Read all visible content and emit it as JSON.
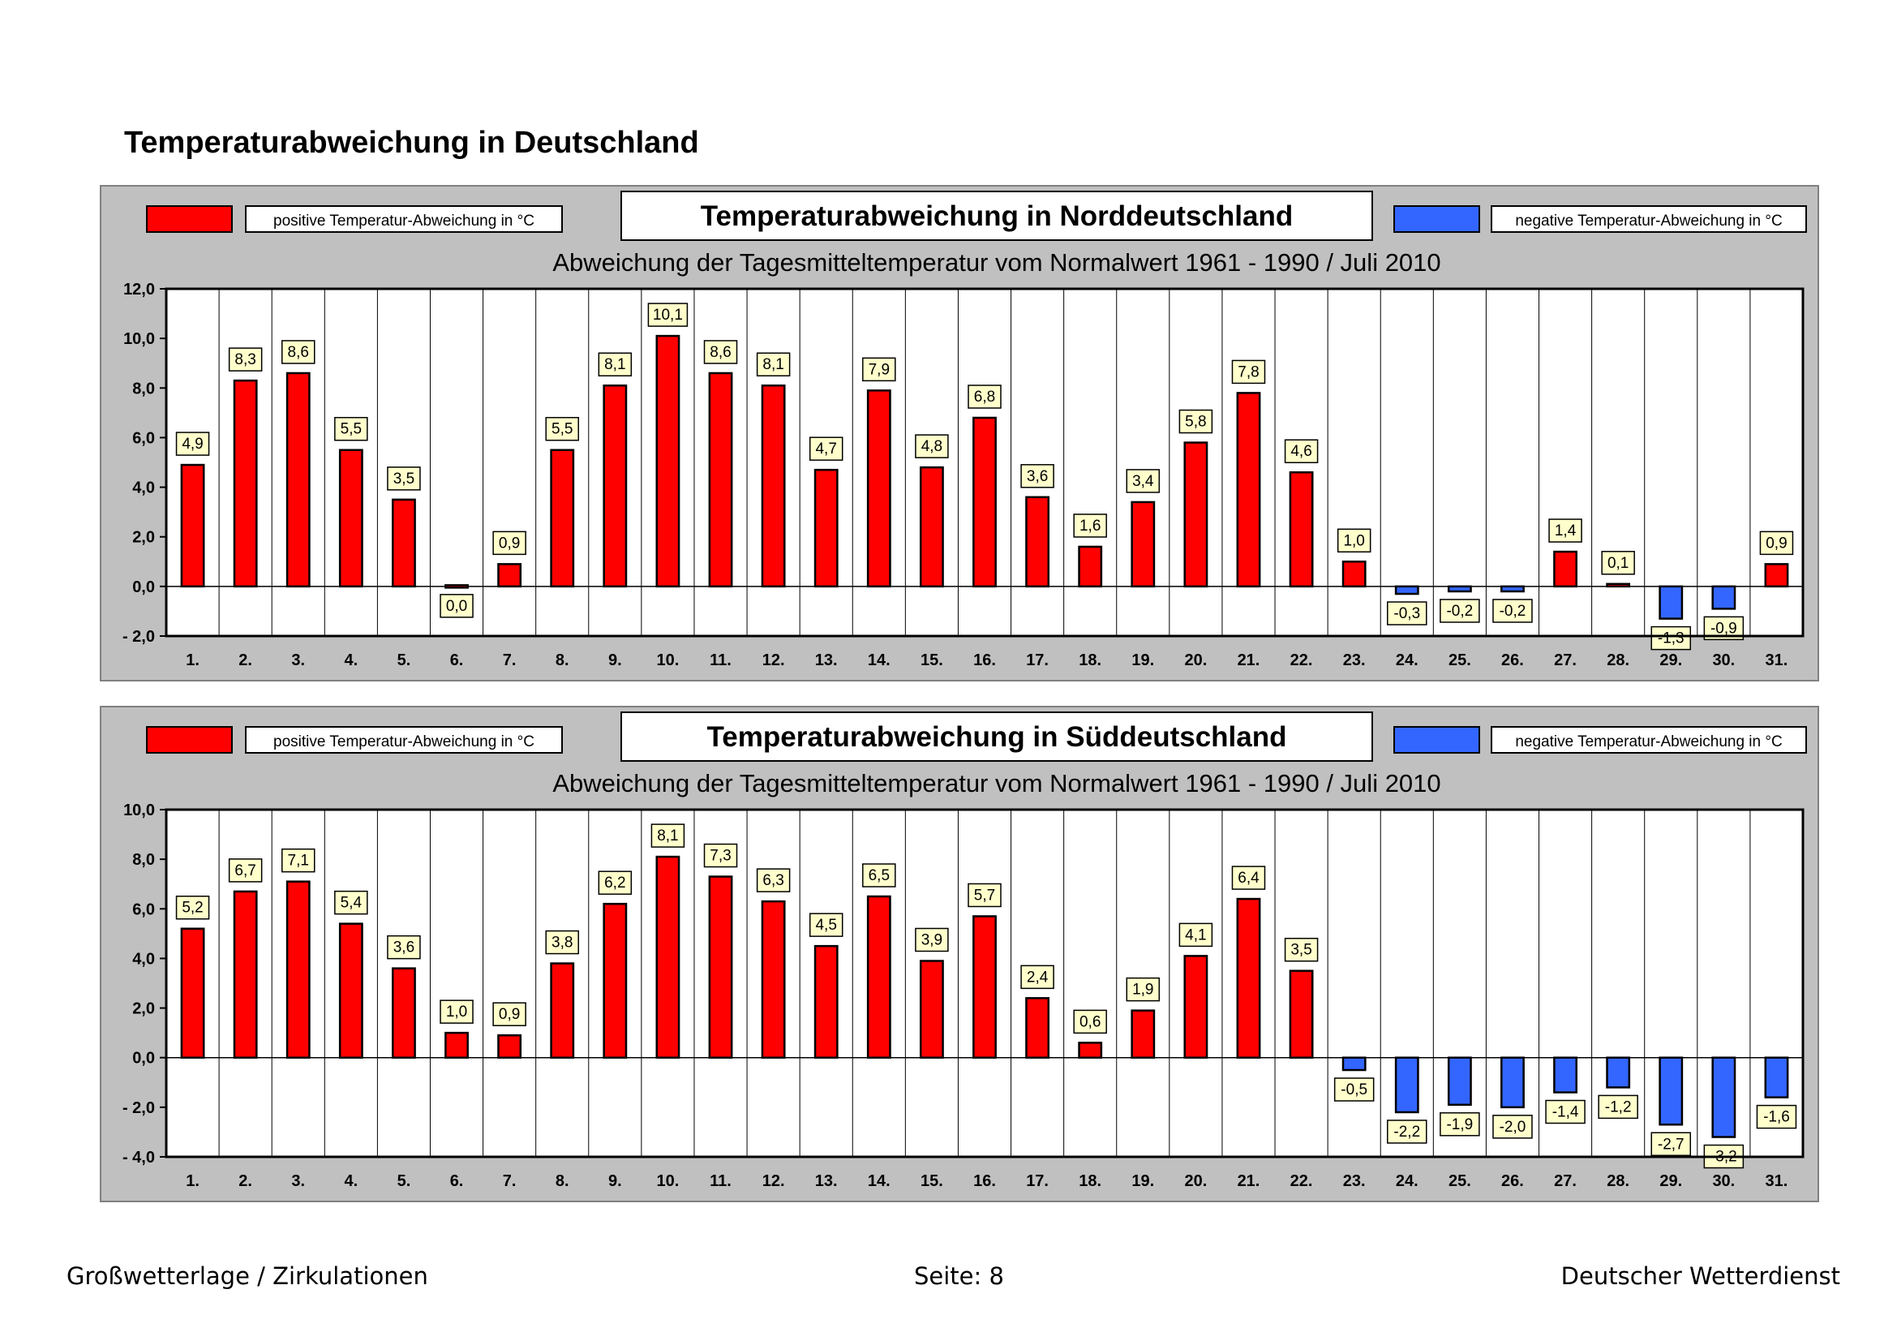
{
  "page": {
    "title": "Temperaturabweichung in Deutschland"
  },
  "footer": {
    "left": "Großwetterlage / Zirkulationen",
    "center": "Seite: 8",
    "right": "Deutscher Wetterdienst"
  },
  "colors": {
    "positive": "#ff0000",
    "negative": "#3366ff",
    "panel": "#c0c0c0",
    "label_box": "#ffffcc"
  },
  "chart_data": [
    {
      "type": "bar",
      "title": "Temperaturabweichung in Norddeutschland",
      "subtitle": "Abweichung der Tagesmitteltemperatur vom Normalwert 1961 - 1990  /  Juli 2010",
      "legend_positive": "positive Temperatur-Abweichung in °C",
      "legend_negative": "negative Temperatur-Abweichung in °C",
      "xlabel": "",
      "ylabel": "",
      "ylim": [
        -2,
        12
      ],
      "yticks": [
        -2,
        0,
        2,
        4,
        6,
        8,
        10,
        12
      ],
      "ytick_labels": [
        "- 2,0",
        "0,0",
        "2,0",
        "4,0",
        "6,0",
        "8,0",
        "10,0",
        "12,0"
      ],
      "categories": [
        "1.",
        "2.",
        "3.",
        "4.",
        "5.",
        "6.",
        "7.",
        "8.",
        "9.",
        "10.",
        "11.",
        "12.",
        "13.",
        "14.",
        "15.",
        "16.",
        "17.",
        "18.",
        "19.",
        "20.",
        "21.",
        "22.",
        "23.",
        "24.",
        "25.",
        "26.",
        "27.",
        "28.",
        "29.",
        "30.",
        "31."
      ],
      "values": [
        4.9,
        8.3,
        8.6,
        5.5,
        3.5,
        0.0,
        0.9,
        5.5,
        8.1,
        10.1,
        8.6,
        8.1,
        4.7,
        7.9,
        4.8,
        6.8,
        3.6,
        1.6,
        3.4,
        5.8,
        7.8,
        4.6,
        1.0,
        -0.3,
        -0.2,
        -0.2,
        1.4,
        0.1,
        -1.3,
        -0.9,
        0.9
      ],
      "labels": [
        "4,9",
        "8,3",
        "8,6",
        "5,5",
        "3,5",
        "0,0",
        "0,9",
        "5,5",
        "8,1",
        "10,1",
        "8,6",
        "8,1",
        "4,7",
        "7,9",
        "4,8",
        "6,8",
        "3,6",
        "1,6",
        "3,4",
        "5,8",
        "7,8",
        "4,6",
        "1,0",
        "-0,3",
        "-0,2",
        "-0,2",
        "1,4",
        "0,1",
        "-1,3",
        "-0,9",
        "0,9"
      ]
    },
    {
      "type": "bar",
      "title": "Temperaturabweichung in Süddeutschland",
      "subtitle": "Abweichung der Tagesmitteltemperatur vom Normalwert 1961 - 1990  /  Juli 2010",
      "legend_positive": "positive Temperatur-Abweichung in °C",
      "legend_negative": "negative Temperatur-Abweichung in °C",
      "xlabel": "",
      "ylabel": "",
      "ylim": [
        -4,
        10
      ],
      "yticks": [
        -4,
        -2,
        0,
        2,
        4,
        6,
        8,
        10
      ],
      "ytick_labels": [
        "- 4,0",
        "- 2,0",
        "0,0",
        "2,0",
        "4,0",
        "6,0",
        "8,0",
        "10,0"
      ],
      "categories": [
        "1.",
        "2.",
        "3.",
        "4.",
        "5.",
        "6.",
        "7.",
        "8.",
        "9.",
        "10.",
        "11.",
        "12.",
        "13.",
        "14.",
        "15.",
        "16.",
        "17.",
        "18.",
        "19.",
        "20.",
        "21.",
        "22.",
        "23.",
        "24.",
        "25.",
        "26.",
        "27.",
        "28.",
        "29.",
        "30.",
        "31."
      ],
      "values": [
        5.2,
        6.7,
        7.1,
        5.4,
        3.6,
        1.0,
        0.9,
        3.8,
        6.2,
        8.1,
        7.3,
        6.3,
        4.5,
        6.5,
        3.9,
        5.7,
        2.4,
        0.6,
        1.9,
        4.1,
        6.4,
        3.5,
        -0.5,
        -2.2,
        -1.9,
        -2.0,
        -1.4,
        -1.2,
        -2.7,
        -3.2,
        -1.6
      ],
      "labels": [
        "5,2",
        "6,7",
        "7,1",
        "5,4",
        "3,6",
        "1,0",
        "0,9",
        "3,8",
        "6,2",
        "8,1",
        "7,3",
        "6,3",
        "4,5",
        "6,5",
        "3,9",
        "5,7",
        "2,4",
        "0,6",
        "1,9",
        "4,1",
        "6,4",
        "3,5",
        "-0,5",
        "-2,2",
        "-1,9",
        "-2,0",
        "-1,4",
        "-1,2",
        "-2,7",
        "-3,2",
        "-1,6"
      ]
    }
  ]
}
